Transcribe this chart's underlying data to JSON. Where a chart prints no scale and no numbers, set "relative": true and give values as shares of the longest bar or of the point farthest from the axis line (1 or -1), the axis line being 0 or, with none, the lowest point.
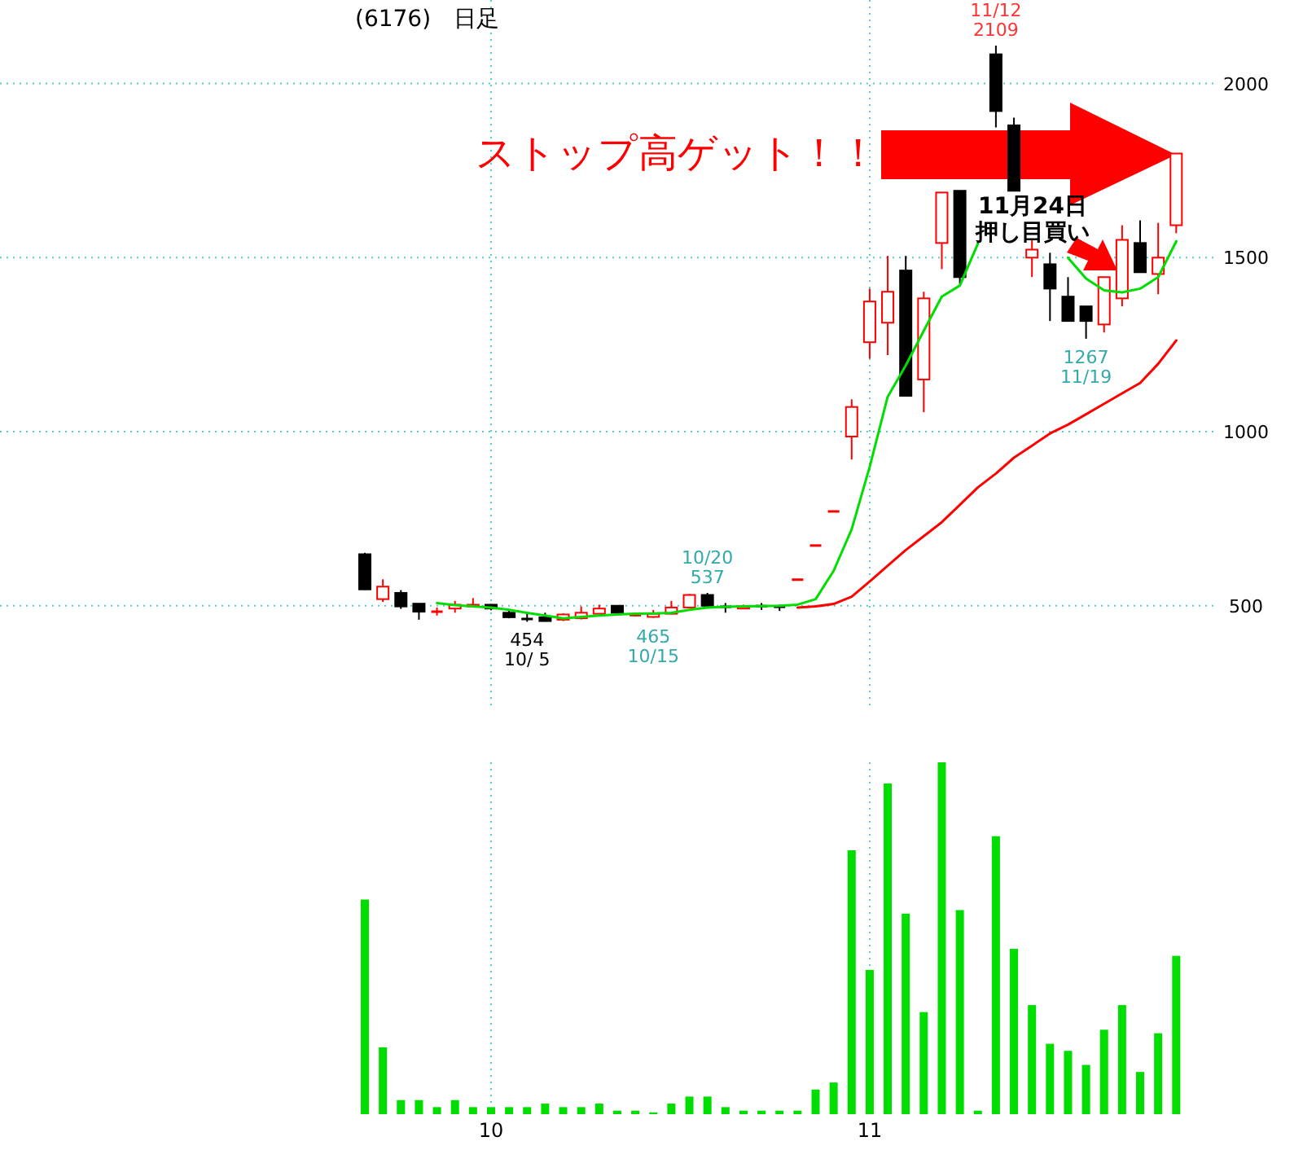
{
  "chart_data": [
    {
      "type": "candlestick",
      "title": "(6176)　日足",
      "categories": [
        null,
        null,
        null,
        null,
        null,
        null,
        null,
        "10",
        null,
        null,
        null,
        null,
        null,
        null,
        null,
        null,
        null,
        null,
        null,
        null,
        null,
        null,
        null,
        null,
        null,
        null,
        null,
        null,
        "11",
        null,
        null,
        null,
        null,
        null,
        null,
        null,
        null,
        null,
        null,
        null,
        null,
        null,
        null,
        null,
        null,
        null
      ],
      "ohlc": [
        [
          648,
          652,
          545,
          547
        ],
        [
          519,
          576,
          511,
          555
        ],
        [
          537,
          545,
          491,
          498
        ],
        [
          506,
          506,
          460,
          483
        ],
        [
          483,
          495,
          472,
          483
        ],
        [
          492,
          514,
          480,
          503
        ],
        [
          498,
          522,
          495,
          503
        ],
        [
          503,
          505,
          487,
          492
        ],
        [
          480,
          488,
          464,
          467
        ],
        [
          462,
          480,
          454,
          460
        ],
        [
          467,
          480,
          455,
          456
        ],
        [
          460,
          478,
          456,
          475
        ],
        [
          464,
          498,
          461,
          480
        ],
        [
          477,
          503,
          477,
          492
        ],
        [
          500,
          500,
          478,
          480
        ],
        [
          473,
          480,
          470,
          477
        ],
        [
          468,
          488,
          465,
          477
        ],
        [
          477,
          514,
          475,
          495
        ],
        [
          495,
          534,
          495,
          531
        ],
        [
          531,
          537,
          498,
          500
        ],
        [
          497,
          508,
          480,
          495
        ],
        [
          492,
          503,
          490,
          498
        ],
        [
          499,
          508,
          488,
          498
        ],
        [
          497,
          503,
          485,
          496
        ],
        [
          575,
          575,
          575,
          575
        ],
        [
          673,
          673,
          673,
          673
        ],
        [
          771,
          771,
          771,
          771
        ],
        [
          986,
          1093,
          920,
          1071
        ],
        [
          1257,
          1411,
          1210,
          1374
        ],
        [
          1313,
          1505,
          1220,
          1402
        ],
        [
          1463,
          1505,
          1103,
          1103
        ],
        [
          1150,
          1402,
          1056,
          1383
        ],
        [
          1542,
          1687,
          1467,
          1687
        ],
        [
          1692,
          1692,
          1425,
          1444
        ],
        null,
        [
          2084,
          2109,
          1874,
          1921
        ],
        [
          1880,
          1902,
          1692,
          1692
        ],
        [
          1500,
          1551,
          1444,
          1523
        ],
        [
          1481,
          1514,
          1318,
          1411
        ],
        [
          1388,
          1444,
          1318,
          1318
        ],
        [
          1360,
          1360,
          1267,
          1318
        ],
        [
          1308,
          1444,
          1285,
          1444
        ],
        [
          1383,
          1593,
          1360,
          1551
        ],
        [
          1542,
          1607,
          1458,
          1458
        ],
        [
          1453,
          1600,
          1395,
          1500
        ],
        [
          1593,
          1799,
          1570,
          1799
        ]
      ],
      "series": [
        {
          "type": "line",
          "color": "#00dd00",
          "values": [
            null,
            null,
            null,
            null,
            508,
            502,
            498,
            495,
            488,
            480,
            472,
            464,
            468,
            472,
            475,
            477,
            478,
            480,
            488,
            495,
            497,
            498,
            499,
            500,
            503,
            519,
            600,
            720,
            900,
            1100,
            1190,
            1290,
            1388,
            1420,
            1540,
            null,
            null,
            null,
            null,
            1500,
            1440,
            1406,
            1400,
            1411,
            1444,
            1547
          ]
        },
        {
          "type": "line",
          "color": "#ff0000",
          "values": [
            null,
            null,
            null,
            null,
            null,
            null,
            null,
            null,
            null,
            null,
            null,
            null,
            null,
            null,
            null,
            null,
            null,
            null,
            null,
            null,
            null,
            null,
            null,
            null,
            495,
            498,
            505,
            526,
            570,
            615,
            660,
            700,
            740,
            790,
            840,
            880,
            925,
            960,
            995,
            1020,
            1050,
            1080,
            1110,
            1140,
            1195,
            1262
          ]
        }
      ],
      "ylim": [
        200,
        2240
      ],
      "yticks": [
        500,
        1000,
        1500,
        2000
      ],
      "grid": true,
      "tick_labels": "y",
      "annotations": [
        "ストップ高ゲット！！",
        "11月24日",
        "押し目買い",
        {
          "text": "11/12\n2109",
          "y": 2109
        },
        {
          "text": "1267\n11/19",
          "y": 1267
        },
        {
          "text": "454\n10/ 5",
          "y": 454
        },
        {
          "text": "465\n10/15",
          "y": 465
        },
        {
          "text": "10/20\n537",
          "y": 537
        }
      ]
    },
    {
      "type": "bar",
      "relative": true,
      "color": "#00dd00",
      "grid": "x",
      "tick_labels": "x",
      "categories": [
        null,
        null,
        null,
        null,
        null,
        null,
        null,
        "10",
        null,
        null,
        null,
        null,
        null,
        null,
        null,
        null,
        null,
        null,
        null,
        null,
        null,
        null,
        null,
        null,
        null,
        null,
        null,
        null,
        "11",
        null,
        null,
        null,
        null,
        null,
        null,
        null,
        null,
        null,
        null,
        null,
        null,
        null,
        null,
        null,
        null,
        null
      ],
      "values": [
        0.61,
        0.19,
        0.04,
        0.04,
        0.02,
        0.04,
        0.02,
        0.02,
        0.02,
        0.02,
        0.03,
        0.02,
        0.02,
        0.03,
        0.01,
        0.01,
        0.005,
        0.03,
        0.05,
        0.05,
        0.02,
        0.01,
        0.01,
        0.01,
        0.01,
        0.07,
        0.09,
        0.75,
        0.41,
        0.94,
        0.57,
        0.29,
        1,
        0.58,
        0.01,
        0.79,
        0.47,
        0.31,
        0.2,
        0.18,
        0.14,
        0.24,
        0.31,
        0.12,
        0.23,
        0.45
      ]
    }
  ]
}
